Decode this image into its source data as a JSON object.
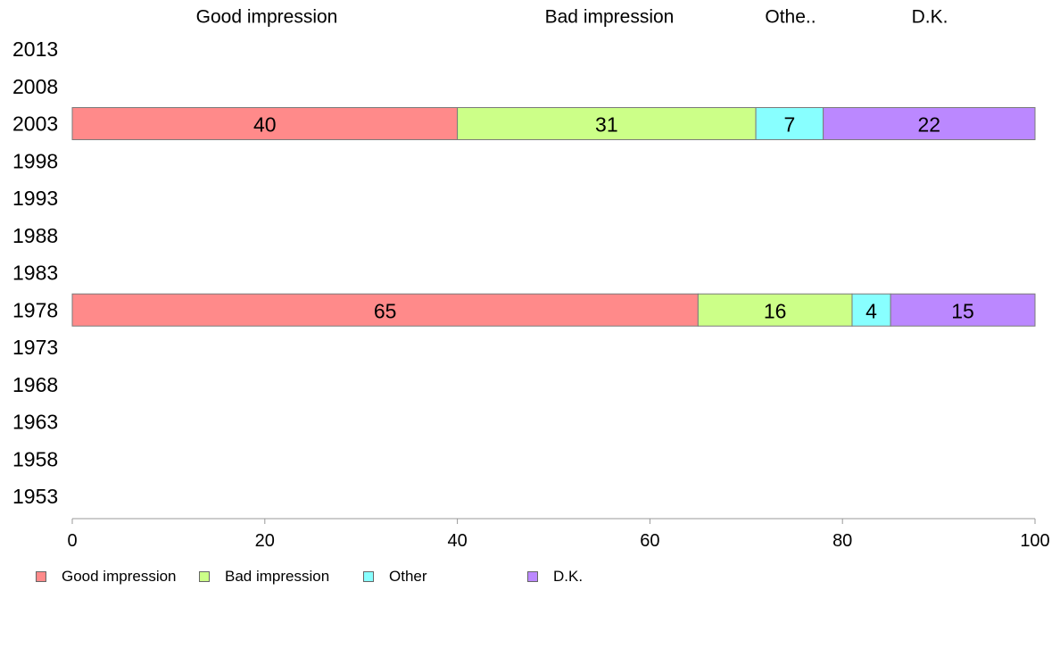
{
  "chart_data": {
    "type": "bar",
    "orientation": "horizontal",
    "stacked": true,
    "categories": [
      "2013",
      "2008",
      "2003",
      "1998",
      "1993",
      "1988",
      "1983",
      "1978",
      "1973",
      "1968",
      "1963",
      "1958",
      "1953"
    ],
    "column_headers": [
      "Good impression",
      "Bad impression",
      "Othe..",
      "D.K."
    ],
    "series": [
      {
        "name": "Good impression",
        "color": "#ff8a8a",
        "values": [
          null,
          null,
          40,
          null,
          null,
          null,
          null,
          65,
          null,
          null,
          null,
          null,
          null
        ]
      },
      {
        "name": "Bad impression",
        "color": "#ccff88",
        "values": [
          null,
          null,
          31,
          null,
          null,
          null,
          null,
          16,
          null,
          null,
          null,
          null,
          null
        ]
      },
      {
        "name": "Other",
        "color": "#88ffff",
        "values": [
          null,
          null,
          7,
          null,
          null,
          null,
          null,
          4,
          null,
          null,
          null,
          null,
          null
        ]
      },
      {
        "name": "D.K.",
        "color": "#bb88ff",
        "values": [
          null,
          null,
          22,
          null,
          null,
          null,
          null,
          15,
          null,
          null,
          null,
          null,
          null
        ]
      }
    ],
    "xlim": [
      0,
      100
    ],
    "xticks": [
      0,
      20,
      40,
      60,
      80,
      100
    ],
    "title": "",
    "xlabel": "",
    "ylabel": "",
    "grid": false,
    "legend_position": "bottom-left"
  }
}
